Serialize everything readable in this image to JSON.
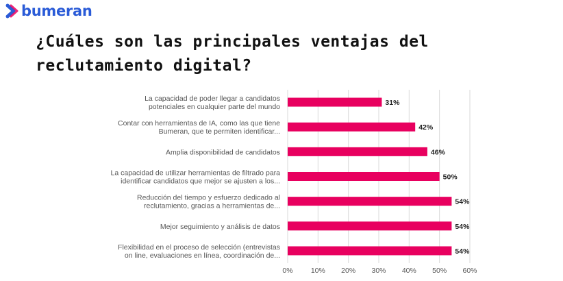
{
  "brand": {
    "name": "bumeran",
    "color": "#2a5bd7"
  },
  "page": {
    "title": "¿Cuáles son las principales ventajas del reclutamiento digital?"
  },
  "chart_data": {
    "type": "bar",
    "orientation": "horizontal",
    "categories": [
      [
        "La capacidad de poder llegar a candidatos",
        "potenciales en cualquier parte del mundo"
      ],
      [
        "Contar con herramientas de IA, como las que tiene",
        "Bumeran, que te permiten identificar..."
      ],
      [
        "Amplia disponibilidad de candidatos"
      ],
      [
        "La capacidad de utilizar herramientas de filtrado para",
        "identificar candidatos que mejor se ajusten a los..."
      ],
      [
        "Reducción del tiempo y esfuerzo dedicado al",
        "reclutamiento, gracias a herramientas de..."
      ],
      [
        "Mejor seguimiento y análisis de datos"
      ],
      [
        "Flexibilidad en el proceso de selección (entrevistas",
        "on line, evaluaciones en línea, coordinación de..."
      ]
    ],
    "values": [
      31,
      42,
      46,
      50,
      54,
      54,
      54
    ],
    "value_labels": [
      "31%",
      "42%",
      "46%",
      "50%",
      "54%",
      "54%",
      "54%"
    ],
    "xlim": [
      0,
      60
    ],
    "xticks": [
      "0%",
      "10%",
      "20%",
      "30%",
      "40%",
      "50%",
      "60%"
    ],
    "bar_color": "#e8005f",
    "grid": true
  }
}
